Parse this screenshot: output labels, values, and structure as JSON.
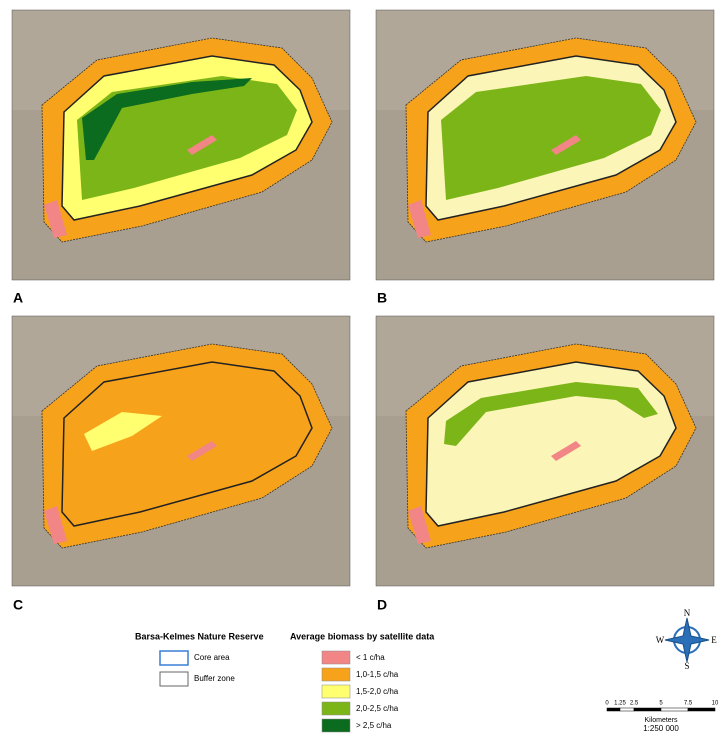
{
  "panels": [
    {
      "label": "A"
    },
    {
      "label": "B"
    },
    {
      "label": "C"
    },
    {
      "label": "D"
    }
  ],
  "legend": {
    "reserve": {
      "title": "Barsa-Kelmes Nature Reserve",
      "items": [
        "Core area",
        "Buffer zone"
      ]
    },
    "biomass": {
      "title": "Average biomass by satellite data",
      "items": [
        "< 1 c/ha",
        "1,0-1,5 c/ha",
        "1,5-2,0 c/ha",
        "2,0-2,5 c/ha",
        "> 2,5 c/ha"
      ]
    }
  },
  "compass": {
    "n": "N",
    "s": "S",
    "w": "W",
    "e": "E"
  },
  "scale_bar": {
    "ticks": [
      "0",
      "1.25",
      "2.5",
      "5",
      "7.5",
      "10"
    ],
    "unit": "Kilometers",
    "ratio": "1:250 000"
  }
}
